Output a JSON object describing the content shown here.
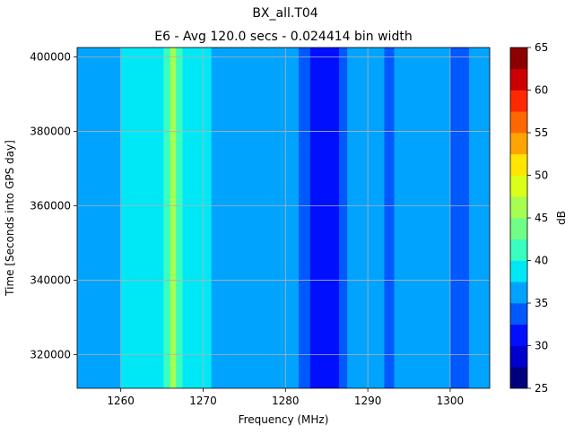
{
  "chart_data": {
    "type": "heatmap",
    "title": "BX_all.T04",
    "subtitle": "E6 - Avg 120.0 secs - 0.024414 bin width",
    "xlabel": "Frequency (MHz)",
    "ylabel": "Time [Seconds into GPS day]",
    "xlim": [
      1254.7,
      1304.8
    ],
    "ylim": [
      311000,
      402500
    ],
    "x_ticks": [
      1260,
      1270,
      1280,
      1290,
      1300
    ],
    "y_ticks": [
      320000,
      340000,
      360000,
      380000,
      400000
    ],
    "grid": true,
    "colorbar": {
      "label": "dB",
      "min": 25,
      "max": 65,
      "step": 2.5,
      "ticks": [
        25,
        30,
        35,
        40,
        45,
        50,
        55,
        60,
        65
      ],
      "colors": [
        "#00007f",
        "#0000ce",
        "#0010ff",
        "#0058ff",
        "#00a4ff",
        "#00e8f5",
        "#38ffbf",
        "#70ff86",
        "#a6ff50",
        "#dcff1a",
        "#ffe500",
        "#ffa400",
        "#ff6800",
        "#fe2900",
        "#cc0000",
        "#8b0000"
      ]
    },
    "bands": [
      {
        "from": 1254.7,
        "to": 1258.0,
        "db": 35.8
      },
      {
        "from": 1258.0,
        "to": 1260.0,
        "db": 36.5
      },
      {
        "from": 1260.0,
        "to": 1260.8,
        "db": 37.8
      },
      {
        "from": 1260.8,
        "to": 1262.8,
        "db": 38.8
      },
      {
        "from": 1262.8,
        "to": 1265.2,
        "db": 37.8
      },
      {
        "from": 1265.2,
        "to": 1266.0,
        "db": 41.5
      },
      {
        "from": 1266.0,
        "to": 1266.7,
        "db": 46.5
      },
      {
        "from": 1266.7,
        "to": 1267.5,
        "db": 41.5
      },
      {
        "from": 1267.5,
        "to": 1271.0,
        "db": 37.8
      },
      {
        "from": 1271.0,
        "to": 1281.6,
        "db": 35.8
      },
      {
        "from": 1281.6,
        "to": 1283.0,
        "db": 33.5
      },
      {
        "from": 1283.0,
        "to": 1286.5,
        "db": 31.5
      },
      {
        "from": 1286.5,
        "to": 1287.5,
        "db": 33.5
      },
      {
        "from": 1287.5,
        "to": 1292.0,
        "db": 35.8
      },
      {
        "from": 1292.0,
        "to": 1293.2,
        "db": 34.3
      },
      {
        "from": 1293.2,
        "to": 1300.0,
        "db": 35.8
      },
      {
        "from": 1300.0,
        "to": 1302.3,
        "db": 33.7
      },
      {
        "from": 1302.3,
        "to": 1304.8,
        "db": 35.8
      }
    ]
  }
}
